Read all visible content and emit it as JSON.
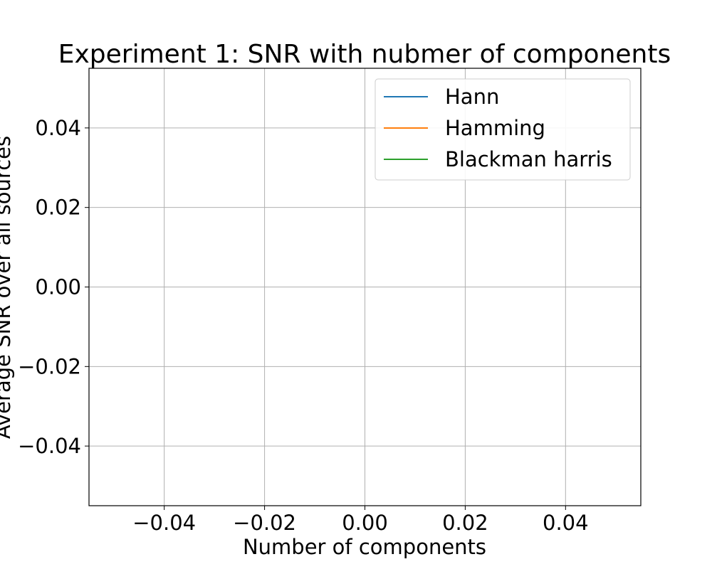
{
  "chart_data": {
    "type": "line",
    "title": "Experiment 1: SNR with nubmer of components",
    "xlabel": "Number of components",
    "ylabel": "Average SNR over all sources",
    "xlim": [
      -0.055,
      0.055
    ],
    "ylim": [
      -0.055,
      0.055
    ],
    "xticks": [
      -0.04,
      -0.02,
      0.0,
      0.02,
      0.04
    ],
    "yticks": [
      -0.04,
      -0.02,
      0.0,
      0.02,
      0.04
    ],
    "xtick_labels": [
      "−0.04",
      "−0.02",
      "0.00",
      "0.02",
      "0.04"
    ],
    "ytick_labels": [
      "−0.04",
      "−0.02",
      "0.00",
      "0.02",
      "0.04"
    ],
    "grid": true,
    "legend_position": "top-right",
    "series": [
      {
        "name": "Hann",
        "color": "#1f77b4",
        "x": [],
        "y": []
      },
      {
        "name": "Hamming",
        "color": "#ff7f0e",
        "x": [],
        "y": []
      },
      {
        "name": "Blackman harris",
        "color": "#2ca02c",
        "x": [],
        "y": []
      }
    ]
  }
}
